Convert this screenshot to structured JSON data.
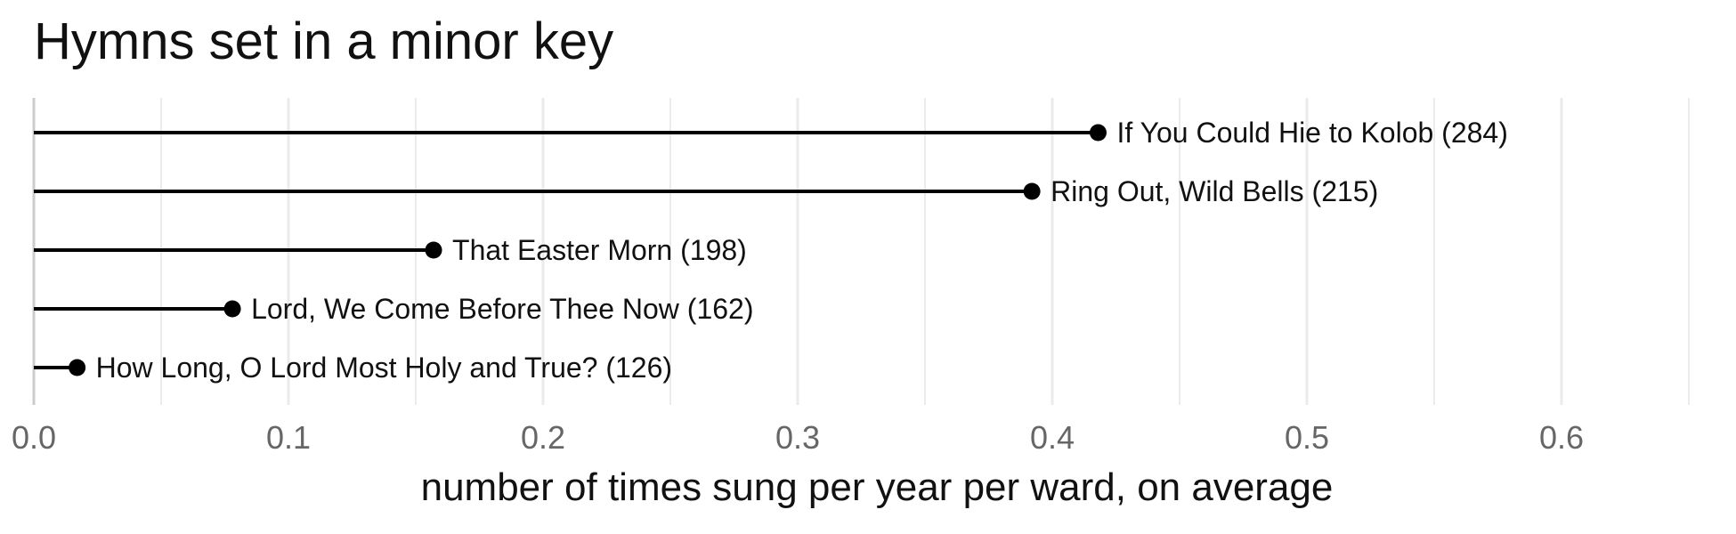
{
  "title": "Hymns set in a minor key",
  "chart_data": {
    "type": "lollipop",
    "title": "Hymns set in a minor key",
    "xlabel": "number of times sung per year per ward, on average",
    "ylabel": "",
    "xlim": [
      0,
      0.65
    ],
    "xticks": [
      "0.0",
      "0.1",
      "0.2",
      "0.3",
      "0.4",
      "0.5",
      "0.6"
    ],
    "grid": true,
    "orientation": "horizontal",
    "marker_color": "#000000",
    "grid_color": "#ebebeb",
    "points": [
      {
        "label": "If You Could Hie to Kolob (284)",
        "value": 0.418
      },
      {
        "label": "Ring Out, Wild Bells (215)",
        "value": 0.392
      },
      {
        "label": "That Easter Morn (198)",
        "value": 0.157
      },
      {
        "label": "Lord, We Come Before Thee Now (162)",
        "value": 0.078
      },
      {
        "label": "How Long, O Lord Most Holy and True? (126)",
        "value": 0.017
      }
    ]
  }
}
